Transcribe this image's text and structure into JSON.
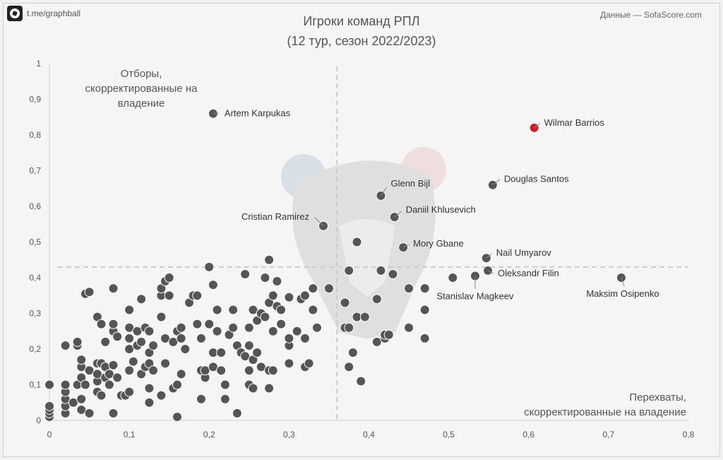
{
  "header": {
    "handle": "t.me/graphball",
    "source": "Данные — SofaScore.com",
    "title_line1": "Игроки команд РПЛ",
    "title_line2": "(12 тур, сезон 2022/2023)"
  },
  "icons": {
    "logo": "football-icon"
  },
  "colors": {
    "point": "#555555",
    "highlight": "#cc1f2a",
    "ref_line": "#cccccc",
    "text": "#555555"
  },
  "chart_data": {
    "type": "scatter",
    "title": "Игроки команд РПЛ",
    "subtitle": "(12 тур, сезон 2022/2023)",
    "xlabel_lines": [
      "Перехваты,",
      "скорректированные на владение"
    ],
    "ylabel_lines": [
      "Отборы,",
      "скорректированные на",
      "владение"
    ],
    "xlim": [
      0,
      0.8
    ],
    "ylim": [
      0,
      1
    ],
    "x_ticks": [
      "0",
      "0,1",
      "0,2",
      "0,3",
      "0,4",
      "0,5",
      "0,6",
      "0,7",
      "0,8"
    ],
    "y_ticks": [
      "0",
      "0,1",
      "0,2",
      "0,3",
      "0,4",
      "0,5",
      "0,6",
      "0,7",
      "0,8",
      "0,9",
      "1"
    ],
    "x_ref": 0.36,
    "y_ref": 0.43,
    "labeled_points": [
      {
        "name": "Artem Karpukas",
        "x": 0.205,
        "y": 0.86
      },
      {
        "name": "Wilmar Barrios",
        "x": 0.607,
        "y": 0.82,
        "highlight": true
      },
      {
        "name": "Douglas Santos",
        "x": 0.555,
        "y": 0.66
      },
      {
        "name": "Glenn Bijl",
        "x": 0.415,
        "y": 0.63
      },
      {
        "name": "Daniil Khlusevich",
        "x": 0.432,
        "y": 0.57
      },
      {
        "name": "Cristian Ramirez",
        "x": 0.343,
        "y": 0.545
      },
      {
        "name": "Mory Gbane",
        "x": 0.443,
        "y": 0.485
      },
      {
        "name": "Nail Umyarov",
        "x": 0.547,
        "y": 0.455
      },
      {
        "name": "Oleksandr Filin",
        "x": 0.549,
        "y": 0.42
      },
      {
        "name": "Stanislav Magkeev",
        "x": 0.533,
        "y": 0.405
      },
      {
        "name": "Maksim Osipenko",
        "x": 0.716,
        "y": 0.4
      }
    ],
    "points": [
      [
        0.0,
        0.01
      ],
      [
        0.0,
        0.02
      ],
      [
        0.0,
        0.03
      ],
      [
        0.0,
        0.04
      ],
      [
        0.0,
        0.1
      ],
      [
        0.02,
        0.02
      ],
      [
        0.02,
        0.04
      ],
      [
        0.02,
        0.06
      ],
      [
        0.02,
        0.08
      ],
      [
        0.02,
        0.1
      ],
      [
        0.02,
        0.21
      ],
      [
        0.03,
        0.05
      ],
      [
        0.035,
        0.1
      ],
      [
        0.035,
        0.21
      ],
      [
        0.035,
        0.22
      ],
      [
        0.04,
        0.03
      ],
      [
        0.04,
        0.06
      ],
      [
        0.04,
        0.12
      ],
      [
        0.04,
        0.15
      ],
      [
        0.04,
        0.17
      ],
      [
        0.045,
        0.1
      ],
      [
        0.045,
        0.355
      ],
      [
        0.05,
        0.02
      ],
      [
        0.05,
        0.14
      ],
      [
        0.05,
        0.36
      ],
      [
        0.06,
        0.08
      ],
      [
        0.06,
        0.11
      ],
      [
        0.06,
        0.13
      ],
      [
        0.06,
        0.16
      ],
      [
        0.06,
        0.29
      ],
      [
        0.065,
        0.07
      ],
      [
        0.065,
        0.16
      ],
      [
        0.065,
        0.27
      ],
      [
        0.07,
        0.12
      ],
      [
        0.07,
        0.15
      ],
      [
        0.07,
        0.22
      ],
      [
        0.075,
        0.1
      ],
      [
        0.075,
        0.13
      ],
      [
        0.08,
        0.02
      ],
      [
        0.08,
        0.155
      ],
      [
        0.08,
        0.25
      ],
      [
        0.08,
        0.27
      ],
      [
        0.08,
        0.37
      ],
      [
        0.085,
        0.12
      ],
      [
        0.085,
        0.235
      ],
      [
        0.09,
        0.07
      ],
      [
        0.095,
        0.07
      ],
      [
        0.1,
        0.08
      ],
      [
        0.1,
        0.14
      ],
      [
        0.1,
        0.2
      ],
      [
        0.1,
        0.23
      ],
      [
        0.1,
        0.26
      ],
      [
        0.1,
        0.31
      ],
      [
        0.105,
        0.165
      ],
      [
        0.11,
        0.21
      ],
      [
        0.11,
        0.25
      ],
      [
        0.115,
        0.13
      ],
      [
        0.115,
        0.22
      ],
      [
        0.115,
        0.34
      ],
      [
        0.12,
        0.15
      ],
      [
        0.12,
        0.26
      ],
      [
        0.125,
        0.05
      ],
      [
        0.125,
        0.09
      ],
      [
        0.125,
        0.16
      ],
      [
        0.125,
        0.19
      ],
      [
        0.125,
        0.25
      ],
      [
        0.13,
        0.14
      ],
      [
        0.13,
        0.21
      ],
      [
        0.14,
        0.07
      ],
      [
        0.14,
        0.29
      ],
      [
        0.14,
        0.35
      ],
      [
        0.14,
        0.37
      ],
      [
        0.145,
        0.16
      ],
      [
        0.145,
        0.23
      ],
      [
        0.145,
        0.39
      ],
      [
        0.15,
        0.35
      ],
      [
        0.15,
        0.4
      ],
      [
        0.155,
        0.09
      ],
      [
        0.155,
        0.22
      ],
      [
        0.16,
        0.01
      ],
      [
        0.16,
        0.1
      ],
      [
        0.16,
        0.25
      ],
      [
        0.165,
        0.13
      ],
      [
        0.165,
        0.23
      ],
      [
        0.165,
        0.26
      ],
      [
        0.17,
        0.2
      ],
      [
        0.175,
        0.33
      ],
      [
        0.18,
        0.35
      ],
      [
        0.185,
        0.27
      ],
      [
        0.185,
        0.35
      ],
      [
        0.19,
        0.06
      ],
      [
        0.19,
        0.14
      ],
      [
        0.19,
        0.23
      ],
      [
        0.195,
        0.12
      ],
      [
        0.195,
        0.14
      ],
      [
        0.2,
        0.27
      ],
      [
        0.2,
        0.43
      ],
      [
        0.205,
        0.15
      ],
      [
        0.205,
        0.19
      ],
      [
        0.205,
        0.38
      ],
      [
        0.21,
        0.25
      ],
      [
        0.21,
        0.31
      ],
      [
        0.215,
        0.14
      ],
      [
        0.215,
        0.19
      ],
      [
        0.22,
        0.06
      ],
      [
        0.22,
        0.1
      ],
      [
        0.225,
        0.24
      ],
      [
        0.23,
        0.26
      ],
      [
        0.23,
        0.31
      ],
      [
        0.235,
        0.21
      ],
      [
        0.235,
        0.02
      ],
      [
        0.24,
        0.19
      ],
      [
        0.245,
        0.18
      ],
      [
        0.245,
        0.41
      ],
      [
        0.25,
        0.1
      ],
      [
        0.25,
        0.14
      ],
      [
        0.25,
        0.21
      ],
      [
        0.25,
        0.26
      ],
      [
        0.255,
        0.09
      ],
      [
        0.255,
        0.17
      ],
      [
        0.255,
        0.31
      ],
      [
        0.26,
        0.19
      ],
      [
        0.26,
        0.28
      ],
      [
        0.265,
        0.15
      ],
      [
        0.265,
        0.3
      ],
      [
        0.27,
        0.29
      ],
      [
        0.27,
        0.4
      ],
      [
        0.275,
        0.09
      ],
      [
        0.275,
        0.14
      ],
      [
        0.275,
        0.33
      ],
      [
        0.275,
        0.45
      ],
      [
        0.28,
        0.14
      ],
      [
        0.28,
        0.25
      ],
      [
        0.28,
        0.35
      ],
      [
        0.285,
        0.32
      ],
      [
        0.285,
        0.39
      ],
      [
        0.29,
        0.27
      ],
      [
        0.29,
        0.31
      ],
      [
        0.3,
        0.16
      ],
      [
        0.3,
        0.21
      ],
      [
        0.3,
        0.23
      ],
      [
        0.3,
        0.345
      ],
      [
        0.31,
        0.25
      ],
      [
        0.315,
        0.34
      ],
      [
        0.32,
        0.15
      ],
      [
        0.32,
        0.23
      ],
      [
        0.32,
        0.35
      ],
      [
        0.325,
        0.16
      ],
      [
        0.33,
        0.31
      ],
      [
        0.33,
        0.37
      ],
      [
        0.335,
        0.26
      ],
      [
        0.35,
        0.37
      ],
      [
        0.37,
        0.26
      ],
      [
        0.37,
        0.33
      ],
      [
        0.375,
        0.42
      ],
      [
        0.375,
        0.26
      ],
      [
        0.375,
        0.15
      ],
      [
        0.38,
        0.19
      ],
      [
        0.385,
        0.29
      ],
      [
        0.385,
        0.5
      ],
      [
        0.39,
        0.11
      ],
      [
        0.395,
        0.29
      ],
      [
        0.41,
        0.22
      ],
      [
        0.41,
        0.34
      ],
      [
        0.415,
        0.42
      ],
      [
        0.42,
        0.23
      ],
      [
        0.42,
        0.24
      ],
      [
        0.425,
        0.24
      ],
      [
        0.43,
        0.41
      ],
      [
        0.45,
        0.26
      ],
      [
        0.45,
        0.37
      ],
      [
        0.47,
        0.23
      ],
      [
        0.47,
        0.31
      ],
      [
        0.47,
        0.37
      ],
      [
        0.505,
        0.4
      ]
    ]
  }
}
